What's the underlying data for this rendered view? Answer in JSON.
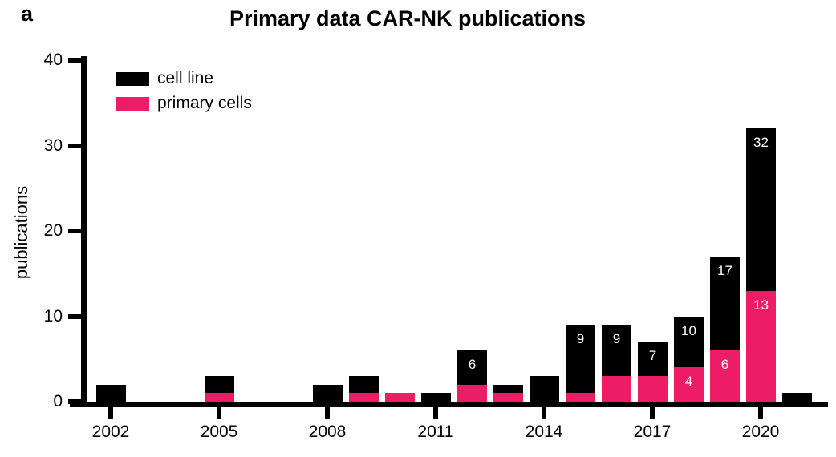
{
  "panel_label": "a",
  "title": "Primary data CAR-NK publications",
  "legend": {
    "items": [
      {
        "label": "cell line",
        "color": "#000000"
      },
      {
        "label": "primary cells",
        "color": "#ED1C67"
      }
    ]
  },
  "y_axis": {
    "label": "publications",
    "ticks": [
      "0",
      "10",
      "20",
      "30",
      "40"
    ],
    "min": 0,
    "max": 40
  },
  "x_axis": {
    "ticks": [
      "2002",
      "2005",
      "2008",
      "2011",
      "2014",
      "2017",
      "2020"
    ]
  },
  "chart_data": {
    "type": "bar",
    "stacked": true,
    "title": "Primary data CAR-NK publications",
    "xlabel": "",
    "ylabel": "publications",
    "ylim": [
      0,
      40
    ],
    "legend_position": "top-left-inside",
    "grid": false,
    "categories": [
      2002,
      2003,
      2004,
      2005,
      2006,
      2007,
      2008,
      2009,
      2010,
      2011,
      2012,
      2013,
      2014,
      2015,
      2016,
      2017,
      2018,
      2019,
      2020,
      2021
    ],
    "series": [
      {
        "name": "primary cells",
        "color": "#ED1C67",
        "values": [
          0,
          0,
          0,
          1,
          0,
          0,
          0,
          1,
          1,
          0,
          2,
          1,
          0,
          1,
          3,
          3,
          4,
          6,
          13,
          0
        ]
      },
      {
        "name": "cell line",
        "color": "#000000",
        "values": [
          2,
          0,
          0,
          2,
          0,
          0,
          2,
          2,
          0,
          1,
          4,
          1,
          3,
          8,
          6,
          4,
          6,
          11,
          19,
          1
        ]
      }
    ],
    "totals": [
      2,
      0,
      0,
      3,
      0,
      0,
      2,
      3,
      1,
      1,
      6,
      2,
      3,
      9,
      9,
      7,
      10,
      17,
      32,
      1
    ],
    "bar_labels": [
      {
        "year": 2012,
        "total_label": "6"
      },
      {
        "year": 2015,
        "total_label": "9"
      },
      {
        "year": 2016,
        "total_label": "9"
      },
      {
        "year": 2017,
        "total_label": "7"
      },
      {
        "year": 2018,
        "total_label": "10",
        "primary_label": "4"
      },
      {
        "year": 2019,
        "total_label": "17",
        "primary_label": "6"
      },
      {
        "year": 2020,
        "total_label": "32",
        "primary_label": "13"
      }
    ]
  }
}
